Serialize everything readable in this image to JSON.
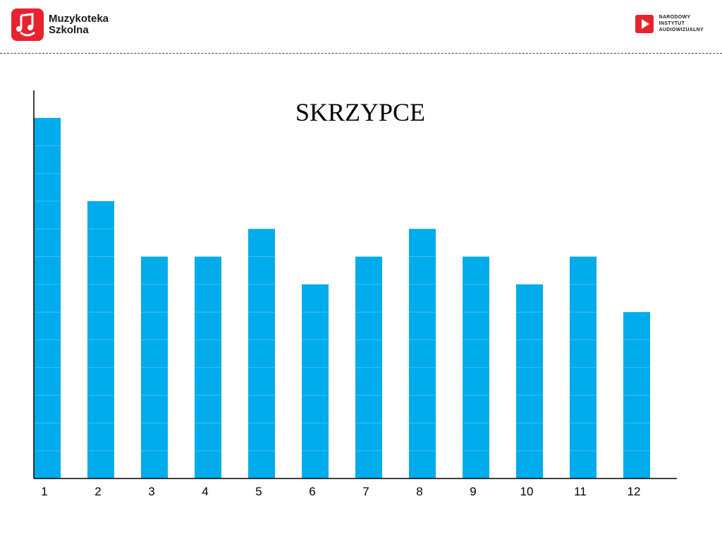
{
  "header": {
    "left_logo": {
      "line1": "Muzykoteka",
      "line2": "Szkolna",
      "icon": "music-note-smile-icon"
    },
    "right_logo": {
      "line1": "NARODOWY",
      "line2": "INSTYTUT",
      "line3": "AUDIOWIZUALNY",
      "icon": "play-icon"
    }
  },
  "colors": {
    "bar": "#00acec",
    "brand_red": "#e8222f",
    "axis": "#000000"
  },
  "chart_data": {
    "type": "bar",
    "title": "SKRZYPCE",
    "categories": [
      "1",
      "2",
      "3",
      "4",
      "5",
      "6",
      "7",
      "8",
      "9",
      "10",
      "11",
      "12"
    ],
    "values": [
      13,
      10,
      8,
      8,
      9,
      7,
      8,
      9,
      8,
      7,
      8,
      6
    ],
    "ylim": [
      0,
      14
    ],
    "xlabel": "",
    "ylabel": "",
    "grid": false
  }
}
